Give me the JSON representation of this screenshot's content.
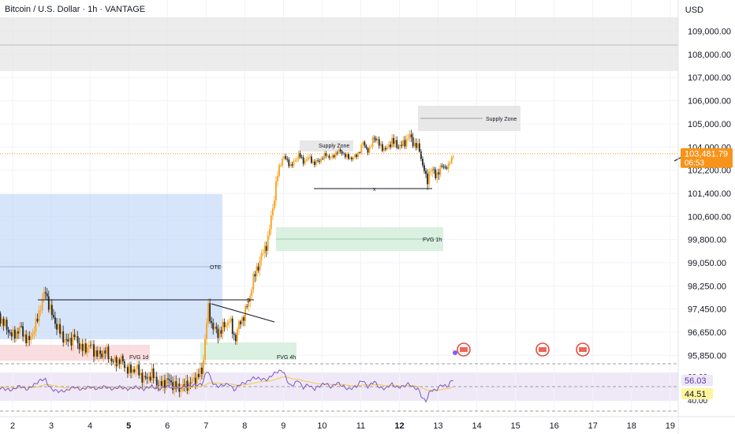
{
  "header": {
    "title": "Bitcoin / U.S. Dollar · 1h · VANTAGE",
    "currency": "USD"
  },
  "chart_data": {
    "type": "candlestick",
    "symbol": "BTCUSD",
    "interval": "1h",
    "y_ticks": [
      "109,000.00",
      "108,000.00",
      "107,000.00",
      "106,000.00",
      "105,000.00",
      "104,000.00",
      "102,200.00",
      "101,400.00",
      "100,600.00",
      "99,800.00",
      "99,050.00",
      "98,250.00",
      "97,450.00",
      "96,650.00",
      "95,850.00"
    ],
    "x_ticks": [
      {
        "label": "2",
        "bold": false
      },
      {
        "label": "3",
        "bold": false
      },
      {
        "label": "4",
        "bold": false
      },
      {
        "label": "5",
        "bold": true
      },
      {
        "label": "6",
        "bold": false
      },
      {
        "label": "7",
        "bold": false
      },
      {
        "label": "8",
        "bold": false
      },
      {
        "label": "9",
        "bold": false
      },
      {
        "label": "10",
        "bold": false
      },
      {
        "label": "11",
        "bold": false
      },
      {
        "label": "12",
        "bold": true
      },
      {
        "label": "13",
        "bold": false
      },
      {
        "label": "14",
        "bold": false
      },
      {
        "label": "15",
        "bold": false
      },
      {
        "label": "16",
        "bold": false
      },
      {
        "label": "17",
        "bold": false
      },
      {
        "label": "18",
        "bold": false
      },
      {
        "label": "19",
        "bold": false
      }
    ],
    "last_price": "103,481.79",
    "countdown": "06:53",
    "close_path": [
      [
        1.6,
        97300
      ],
      [
        1.8,
        96900
      ],
      [
        2.0,
        96500
      ],
      [
        2.2,
        96800
      ],
      [
        2.4,
        96300
      ],
      [
        2.6,
        96900
      ],
      [
        2.75,
        97700
      ],
      [
        2.85,
        98050
      ],
      [
        3.0,
        97300
      ],
      [
        3.2,
        96700
      ],
      [
        3.4,
        96300
      ],
      [
        3.6,
        96500
      ],
      [
        3.8,
        96050
      ],
      [
        4.0,
        96200
      ],
      [
        4.2,
        95850
      ],
      [
        4.4,
        96000
      ],
      [
        4.6,
        95600
      ],
      [
        4.8,
        95700
      ],
      [
        5.0,
        95300
      ],
      [
        5.2,
        95400
      ],
      [
        5.4,
        95000
      ],
      [
        5.6,
        95200
      ],
      [
        5.8,
        94800
      ],
      [
        6.0,
        95000
      ],
      [
        6.3,
        94700
      ],
      [
        6.6,
        94900
      ],
      [
        6.9,
        95300
      ],
      [
        7.05,
        97500
      ],
      [
        7.15,
        96900
      ],
      [
        7.3,
        96600
      ],
      [
        7.5,
        96900
      ],
      [
        7.6,
        97100
      ],
      [
        7.75,
        96400
      ],
      [
        7.85,
        96900
      ],
      [
        8.0,
        97300
      ],
      [
        8.1,
        97700
      ],
      [
        8.2,
        98350
      ],
      [
        8.3,
        98800
      ],
      [
        8.45,
        99300
      ],
      [
        8.6,
        99800
      ],
      [
        8.7,
        100700
      ],
      [
        8.8,
        101600
      ],
      [
        8.9,
        102500
      ],
      [
        9.0,
        103300
      ],
      [
        9.1,
        102900
      ],
      [
        9.2,
        102500
      ],
      [
        9.3,
        102900
      ],
      [
        9.4,
        103500
      ],
      [
        9.5,
        102800
      ],
      [
        9.65,
        103200
      ],
      [
        9.8,
        102700
      ],
      [
        9.95,
        103000
      ],
      [
        10.1,
        103400
      ],
      [
        10.25,
        103100
      ],
      [
        10.4,
        103700
      ],
      [
        10.55,
        103500
      ],
      [
        10.7,
        103100
      ],
      [
        10.9,
        103300
      ],
      [
        11.05,
        104200
      ],
      [
        11.2,
        103700
      ],
      [
        11.35,
        104500
      ],
      [
        11.5,
        104000
      ],
      [
        11.65,
        103800
      ],
      [
        11.8,
        104300
      ],
      [
        11.95,
        104000
      ],
      [
        12.1,
        104100
      ],
      [
        12.25,
        104500
      ],
      [
        12.35,
        104200
      ],
      [
        12.5,
        103900
      ],
      [
        12.6,
        102600
      ],
      [
        12.7,
        101700
      ],
      [
        12.8,
        102300
      ],
      [
        12.95,
        102000
      ],
      [
        13.1,
        102500
      ],
      [
        13.25,
        102400
      ],
      [
        13.4,
        103480
      ]
    ],
    "rsi": {
      "value": "56.03",
      "ma_value": "44.51",
      "upper_label": "60.00",
      "lower_label": "40.00"
    },
    "annotations": {
      "supply_zone_1": "Supply Zone",
      "supply_zone_2": "Supply Zone",
      "fvg_1h": "FVG 1h",
      "fvg_4h": "FVG 4h",
      "fvg_1d": "FVG 1d",
      "ote": "OTE",
      "liquidity_mark": "$",
      "x_mark": "x"
    },
    "grid": true
  }
}
